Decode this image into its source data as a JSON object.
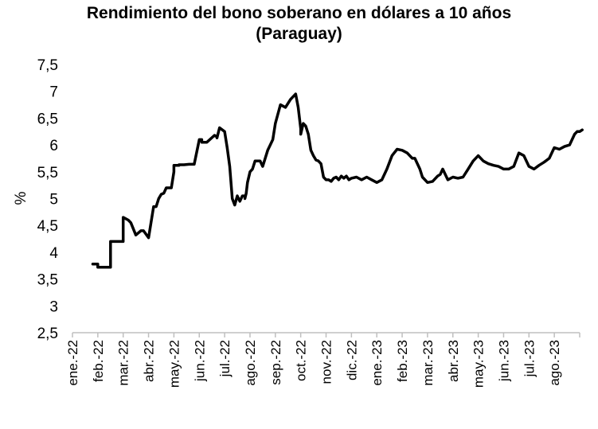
{
  "chart_data": {
    "type": "line",
    "title_line1": "Rendimiento del bono soberano en dólares a 10 años",
    "title_line2": "(Paraguay)",
    "xlabel": "",
    "ylabel": "%",
    "ylim": [
      2.5,
      7.5
    ],
    "y_ticks": [
      "2,5",
      "3",
      "3,5",
      "4",
      "4,5",
      "5",
      "5,5",
      "6",
      "6,5",
      "7",
      "7,5"
    ],
    "x_ticks": [
      "ene.-22",
      "feb.-22",
      "mar.-22",
      "abr.-22",
      "may.-22",
      "jun.-22",
      "jul.-22",
      "ago.-22",
      "sep.-22",
      "oct.-22",
      "nov.-22",
      "dic.-22",
      "ene.-23",
      "feb.-23",
      "mar.-23",
      "abr.-23",
      "may.-23",
      "jun.-23",
      "jul.-23",
      "ago.-23"
    ],
    "grid": false,
    "legend": "none",
    "line_color": "#000000",
    "series": [
      {
        "x": [
          0.8,
          1.0,
          1.0,
          1.5,
          1.5,
          2.0,
          2.0,
          2.2,
          2.3,
          2.5,
          2.7,
          2.8,
          3.0,
          3.2,
          3.3,
          3.4,
          3.5,
          3.6,
          3.7,
          3.9,
          4.0,
          4.0,
          4.1,
          4.2,
          4.2,
          4.4,
          4.6,
          4.8,
          5.0,
          5.0,
          5.1,
          5.1,
          5.3,
          5.6,
          5.7,
          5.7,
          5.8,
          6.0,
          6.1,
          6.2,
          6.3,
          6.4,
          6.5,
          6.6,
          6.65,
          6.7,
          6.8,
          6.8,
          6.85,
          6.9,
          7.0,
          7.1,
          7.2,
          7.4,
          7.5,
          7.7,
          7.8,
          7.9,
          8.0,
          8.2,
          8.4,
          8.6,
          8.7,
          8.8,
          8.9,
          9.0,
          9.0,
          9.1,
          9.2,
          9.3,
          9.4,
          9.5,
          9.6,
          9.7,
          9.8,
          9.9,
          10.0,
          10.1,
          10.2,
          10.3,
          10.4,
          10.5,
          10.6,
          10.7,
          10.8,
          10.9,
          11.0,
          11.2,
          11.4,
          11.6,
          11.8,
          12.0,
          12.2,
          12.4,
          12.6,
          12.8,
          13.0,
          13.2,
          13.4,
          13.5,
          13.6,
          13.7,
          13.8,
          14.0,
          14.2,
          14.4,
          14.5,
          14.6,
          14.8,
          15.0,
          15.2,
          15.4,
          15.6,
          15.8,
          16.0,
          16.2,
          16.4,
          16.6,
          16.8,
          17.0,
          17.2,
          17.4,
          17.6,
          17.8,
          18.0,
          18.2,
          18.4,
          18.6,
          18.8,
          19.0,
          19.2,
          19.4,
          19.6,
          19.8,
          19.9,
          20.0,
          20.1
        ],
        "y": [
          3.78,
          3.78,
          3.72,
          3.72,
          4.2,
          4.2,
          4.65,
          4.6,
          4.55,
          4.32,
          4.4,
          4.4,
          4.27,
          4.85,
          4.85,
          5.0,
          5.08,
          5.1,
          5.2,
          5.2,
          5.5,
          5.62,
          5.62,
          5.62,
          5.63,
          5.63,
          5.64,
          5.64,
          6.1,
          6.1,
          6.1,
          6.05,
          6.05,
          6.18,
          6.15,
          6.13,
          6.32,
          6.25,
          5.95,
          5.6,
          5.0,
          4.88,
          5.05,
          4.95,
          5.0,
          5.05,
          5.05,
          5.0,
          5.1,
          5.3,
          5.5,
          5.55,
          5.7,
          5.7,
          5.6,
          5.9,
          6.0,
          6.1,
          6.4,
          6.75,
          6.7,
          6.85,
          6.9,
          6.95,
          6.7,
          6.3,
          6.2,
          6.4,
          6.35,
          6.2,
          5.9,
          5.8,
          5.72,
          5.7,
          5.65,
          5.4,
          5.35,
          5.35,
          5.32,
          5.38,
          5.4,
          5.35,
          5.42,
          5.38,
          5.42,
          5.35,
          5.38,
          5.4,
          5.35,
          5.4,
          5.35,
          5.3,
          5.35,
          5.55,
          5.8,
          5.92,
          5.9,
          5.85,
          5.75,
          5.75,
          5.65,
          5.55,
          5.4,
          5.3,
          5.32,
          5.42,
          5.45,
          5.55,
          5.35,
          5.4,
          5.38,
          5.4,
          5.55,
          5.7,
          5.8,
          5.7,
          5.65,
          5.62,
          5.6,
          5.55,
          5.55,
          5.6,
          5.85,
          5.8,
          5.6,
          5.55,
          5.62,
          5.68,
          5.75,
          5.95,
          5.92,
          5.97,
          6.0,
          6.2,
          6.25,
          6.25,
          6.28
        ]
      }
    ]
  }
}
